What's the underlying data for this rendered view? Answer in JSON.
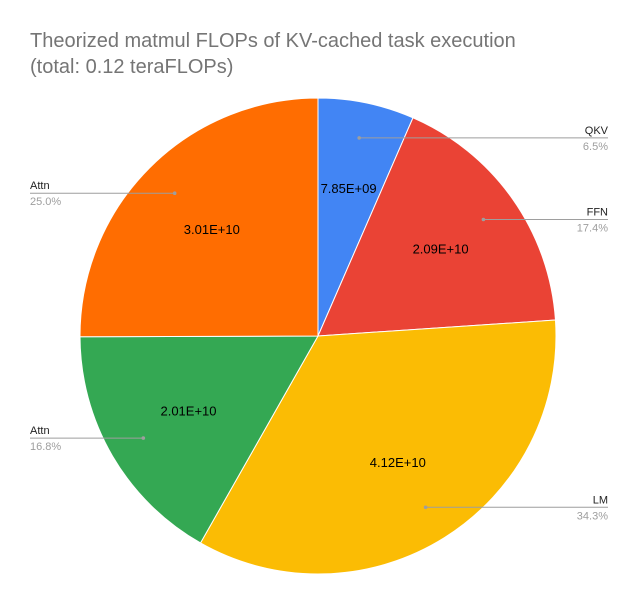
{
  "chart_data": {
    "type": "pie",
    "title": "Theorized matmul FLOPs of KV-cached task execution",
    "subtitle": "(total: 0.12 teraFLOPs)",
    "slices": [
      {
        "label": "QKV",
        "value": 7850000000.0,
        "value_label": "7.85E+09",
        "percent_label": "6.5%",
        "color": "#4285f4",
        "legend_side": "right"
      },
      {
        "label": "FFN",
        "value": 20900000000.0,
        "value_label": "2.09E+10",
        "percent_label": "17.4%",
        "color": "#ea4335",
        "legend_side": "right"
      },
      {
        "label": "LM",
        "value": 41200000000.0,
        "value_label": "4.12E+10",
        "percent_label": "34.3%",
        "color": "#fbbc04",
        "legend_side": "right"
      },
      {
        "label": "Attn",
        "value": 20100000000.0,
        "value_label": "2.01E+10",
        "percent_label": "16.8%",
        "color": "#34a853",
        "legend_side": "left"
      },
      {
        "label": "Attn",
        "value": 30100000000.0,
        "value_label": "3.01E+10",
        "percent_label": "25.0%",
        "color": "#ff6d01",
        "legend_side": "left"
      }
    ]
  }
}
